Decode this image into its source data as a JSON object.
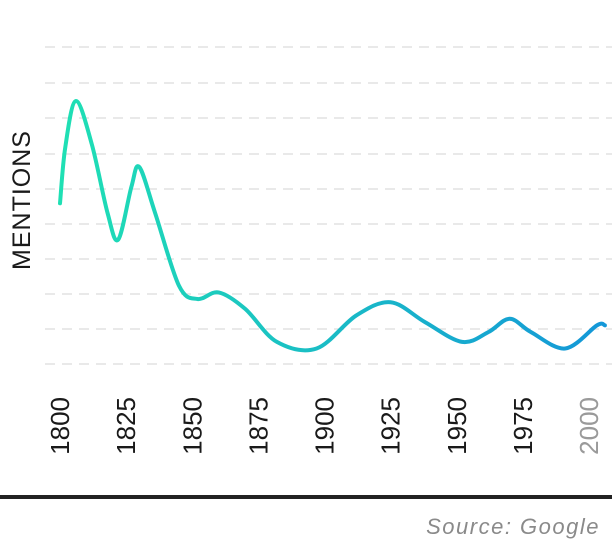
{
  "chart_data": {
    "type": "line",
    "title": "",
    "xlabel": "",
    "ylabel": "MENTIONS",
    "source": "Source: Google",
    "x_ticks": [
      "1800",
      "1825",
      "1850",
      "1875",
      "1900",
      "1925",
      "1950",
      "1975",
      "2000"
    ],
    "grid": true,
    "series": [
      {
        "name": "",
        "color_start": "#1fe0b4",
        "color_end": "#1497d8",
        "points": [
          [
            1800,
            0.49
          ],
          [
            1802,
            0.66
          ],
          [
            1806,
            0.8
          ],
          [
            1812,
            0.67
          ],
          [
            1818,
            0.46
          ],
          [
            1822,
            0.38
          ],
          [
            1827,
            0.54
          ],
          [
            1830,
            0.6
          ],
          [
            1836,
            0.46
          ],
          [
            1845,
            0.24
          ],
          [
            1852,
            0.2
          ],
          [
            1860,
            0.22
          ],
          [
            1870,
            0.17
          ],
          [
            1882,
            0.07
          ],
          [
            1897,
            0.05
          ],
          [
            1912,
            0.15
          ],
          [
            1925,
            0.19
          ],
          [
            1938,
            0.13
          ],
          [
            1952,
            0.07
          ],
          [
            1962,
            0.1
          ],
          [
            1970,
            0.14
          ],
          [
            1978,
            0.1
          ],
          [
            1991,
            0.05
          ],
          [
            2003,
            0.12
          ],
          [
            2006,
            0.12
          ]
        ]
      }
    ],
    "colors": {
      "grid": "#e2e2e2",
      "tick_text": "#1a1a1a",
      "tick_text_muted": "#9a9a9a",
      "baseline": "#222222",
      "source_text": "#8a8a8a"
    }
  }
}
